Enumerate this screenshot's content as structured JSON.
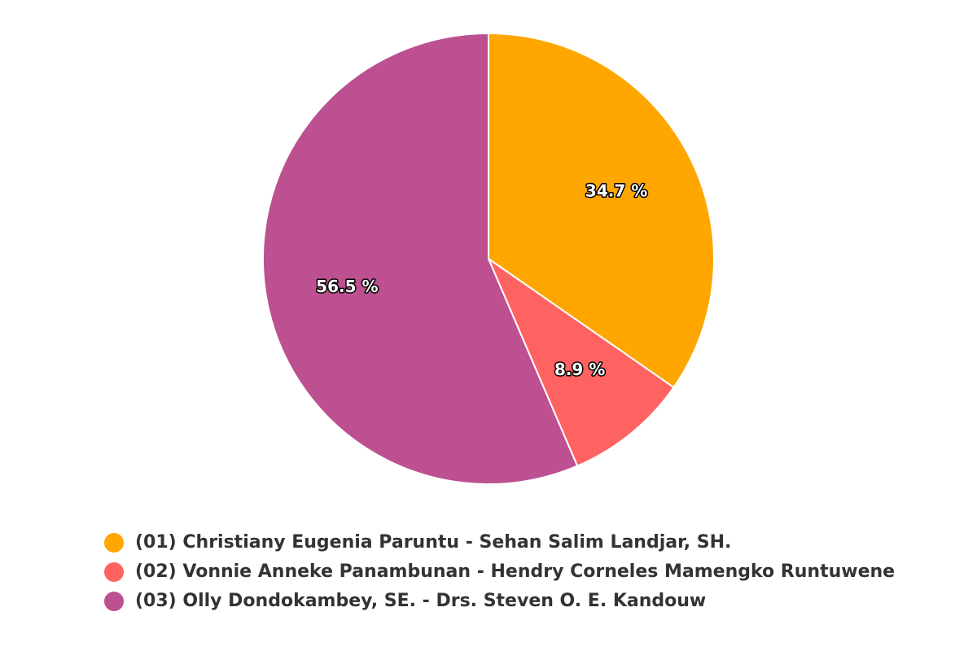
{
  "chart_data": {
    "type": "pie",
    "categories": [
      "(01) Christiany Eugenia Paruntu - Sehan Salim Landjar, SH.",
      "(02) Vonnie Anneke Panambunan - Hendry Corneles Mamengko Runtuwene",
      "(03) Olly Dondokambey, SE. - Drs. Steven O. E. Kandouw"
    ],
    "values": [
      34.7,
      8.9,
      56.5
    ],
    "value_labels": [
      "34.7 %",
      "8.9 %",
      "56.5 %"
    ],
    "colors": [
      "#ffa600",
      "#ff6361",
      "#bc5090"
    ]
  }
}
